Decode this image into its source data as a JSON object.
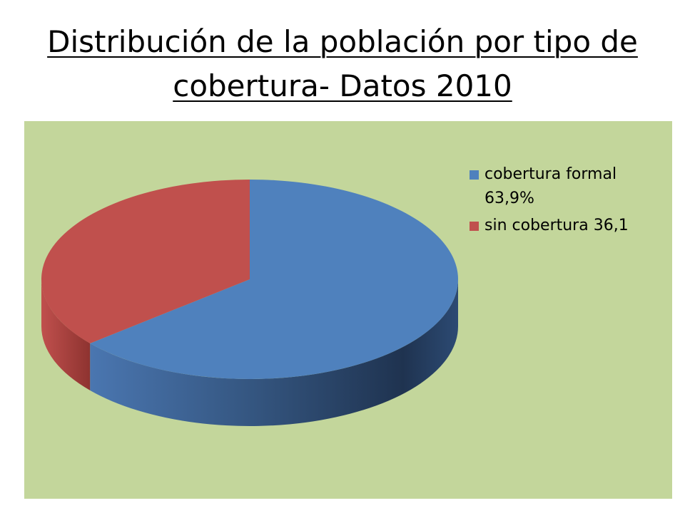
{
  "title": "Distribución de la población por tipo de cobertura- Datos 2010",
  "chart_data": {
    "type": "pie",
    "style": "3d",
    "categories": [
      "cobertura formal 63,9%",
      "sin cobertura 36,1"
    ],
    "values": [
      63.9,
      36.1
    ],
    "colors": [
      "#4f81bd",
      "#c0504d"
    ],
    "background": "#c3d69b",
    "legend_position": "right",
    "legend": [
      {
        "label": "cobertura formal 63,9%",
        "color": "#4f81bd"
      },
      {
        "label": "sin cobertura 36,1",
        "color": "#c0504d"
      }
    ]
  }
}
